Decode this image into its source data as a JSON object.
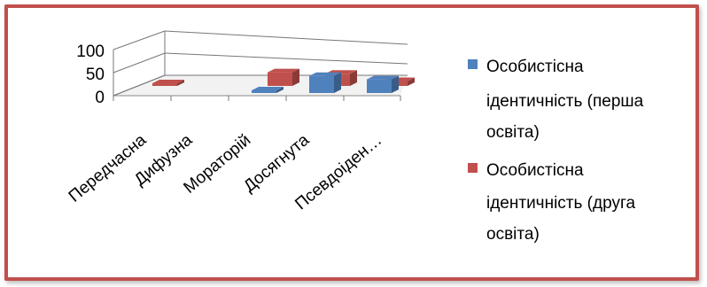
{
  "chart_data": {
    "type": "bar",
    "categories": [
      "Передчасна",
      "Дифузна",
      "Мораторій",
      "Досягнута",
      "Псевдоіден…"
    ],
    "series": [
      {
        "name": "Особистісна ідентичність (перша освіта)",
        "values": [
          0,
          0,
          5,
          35,
          28
        ],
        "color": "#4f81bd"
      },
      {
        "name": "Особистісна ідентичність (друга освіта)",
        "values": [
          5,
          0,
          28,
          25,
          10
        ],
        "color": "#c0504d"
      }
    ],
    "ylim": [
      0,
      100
    ],
    "yticks": [
      "0",
      "50",
      "100"
    ],
    "legend": [
      "Особистісна",
      "ідентичність (перша",
      "освіта)",
      "Особистісна",
      "ідентичність (друга",
      "освіта)"
    ],
    "grid": true,
    "legend_position": "right"
  }
}
